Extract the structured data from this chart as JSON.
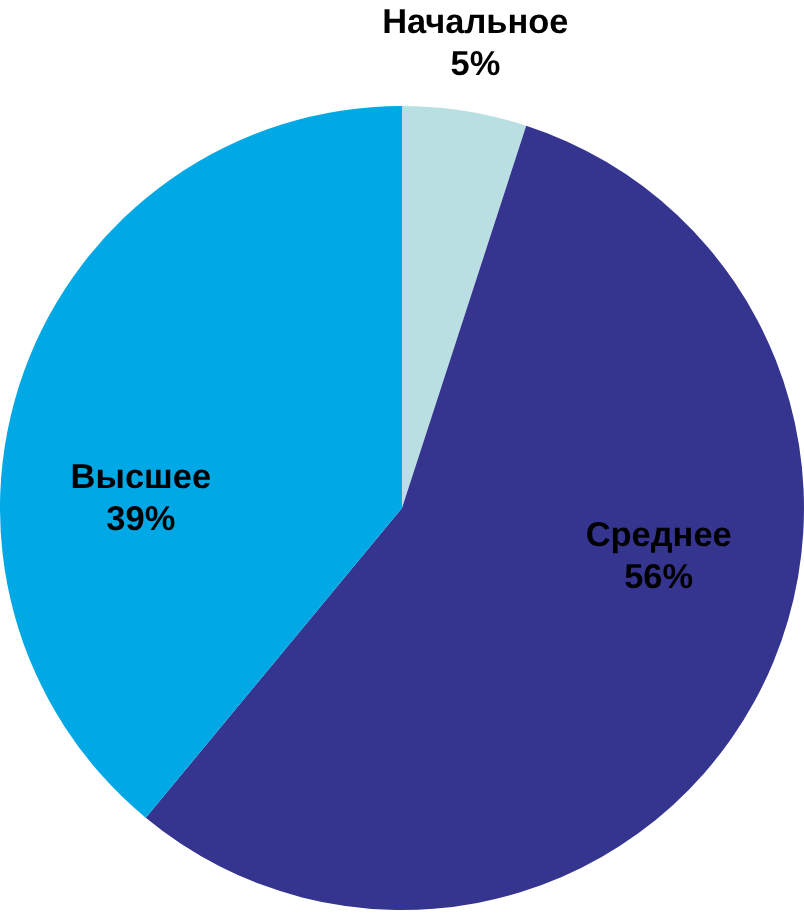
{
  "chart_data": {
    "type": "pie",
    "categories": [
      "Начальное",
      "Среднее",
      "Высшее"
    ],
    "values": [
      5,
      56,
      39
    ],
    "colors": [
      "#b9dfe3",
      "#35348f",
      "#00a8e6"
    ],
    "value_labels": [
      "5%",
      "56%",
      "39%"
    ]
  }
}
